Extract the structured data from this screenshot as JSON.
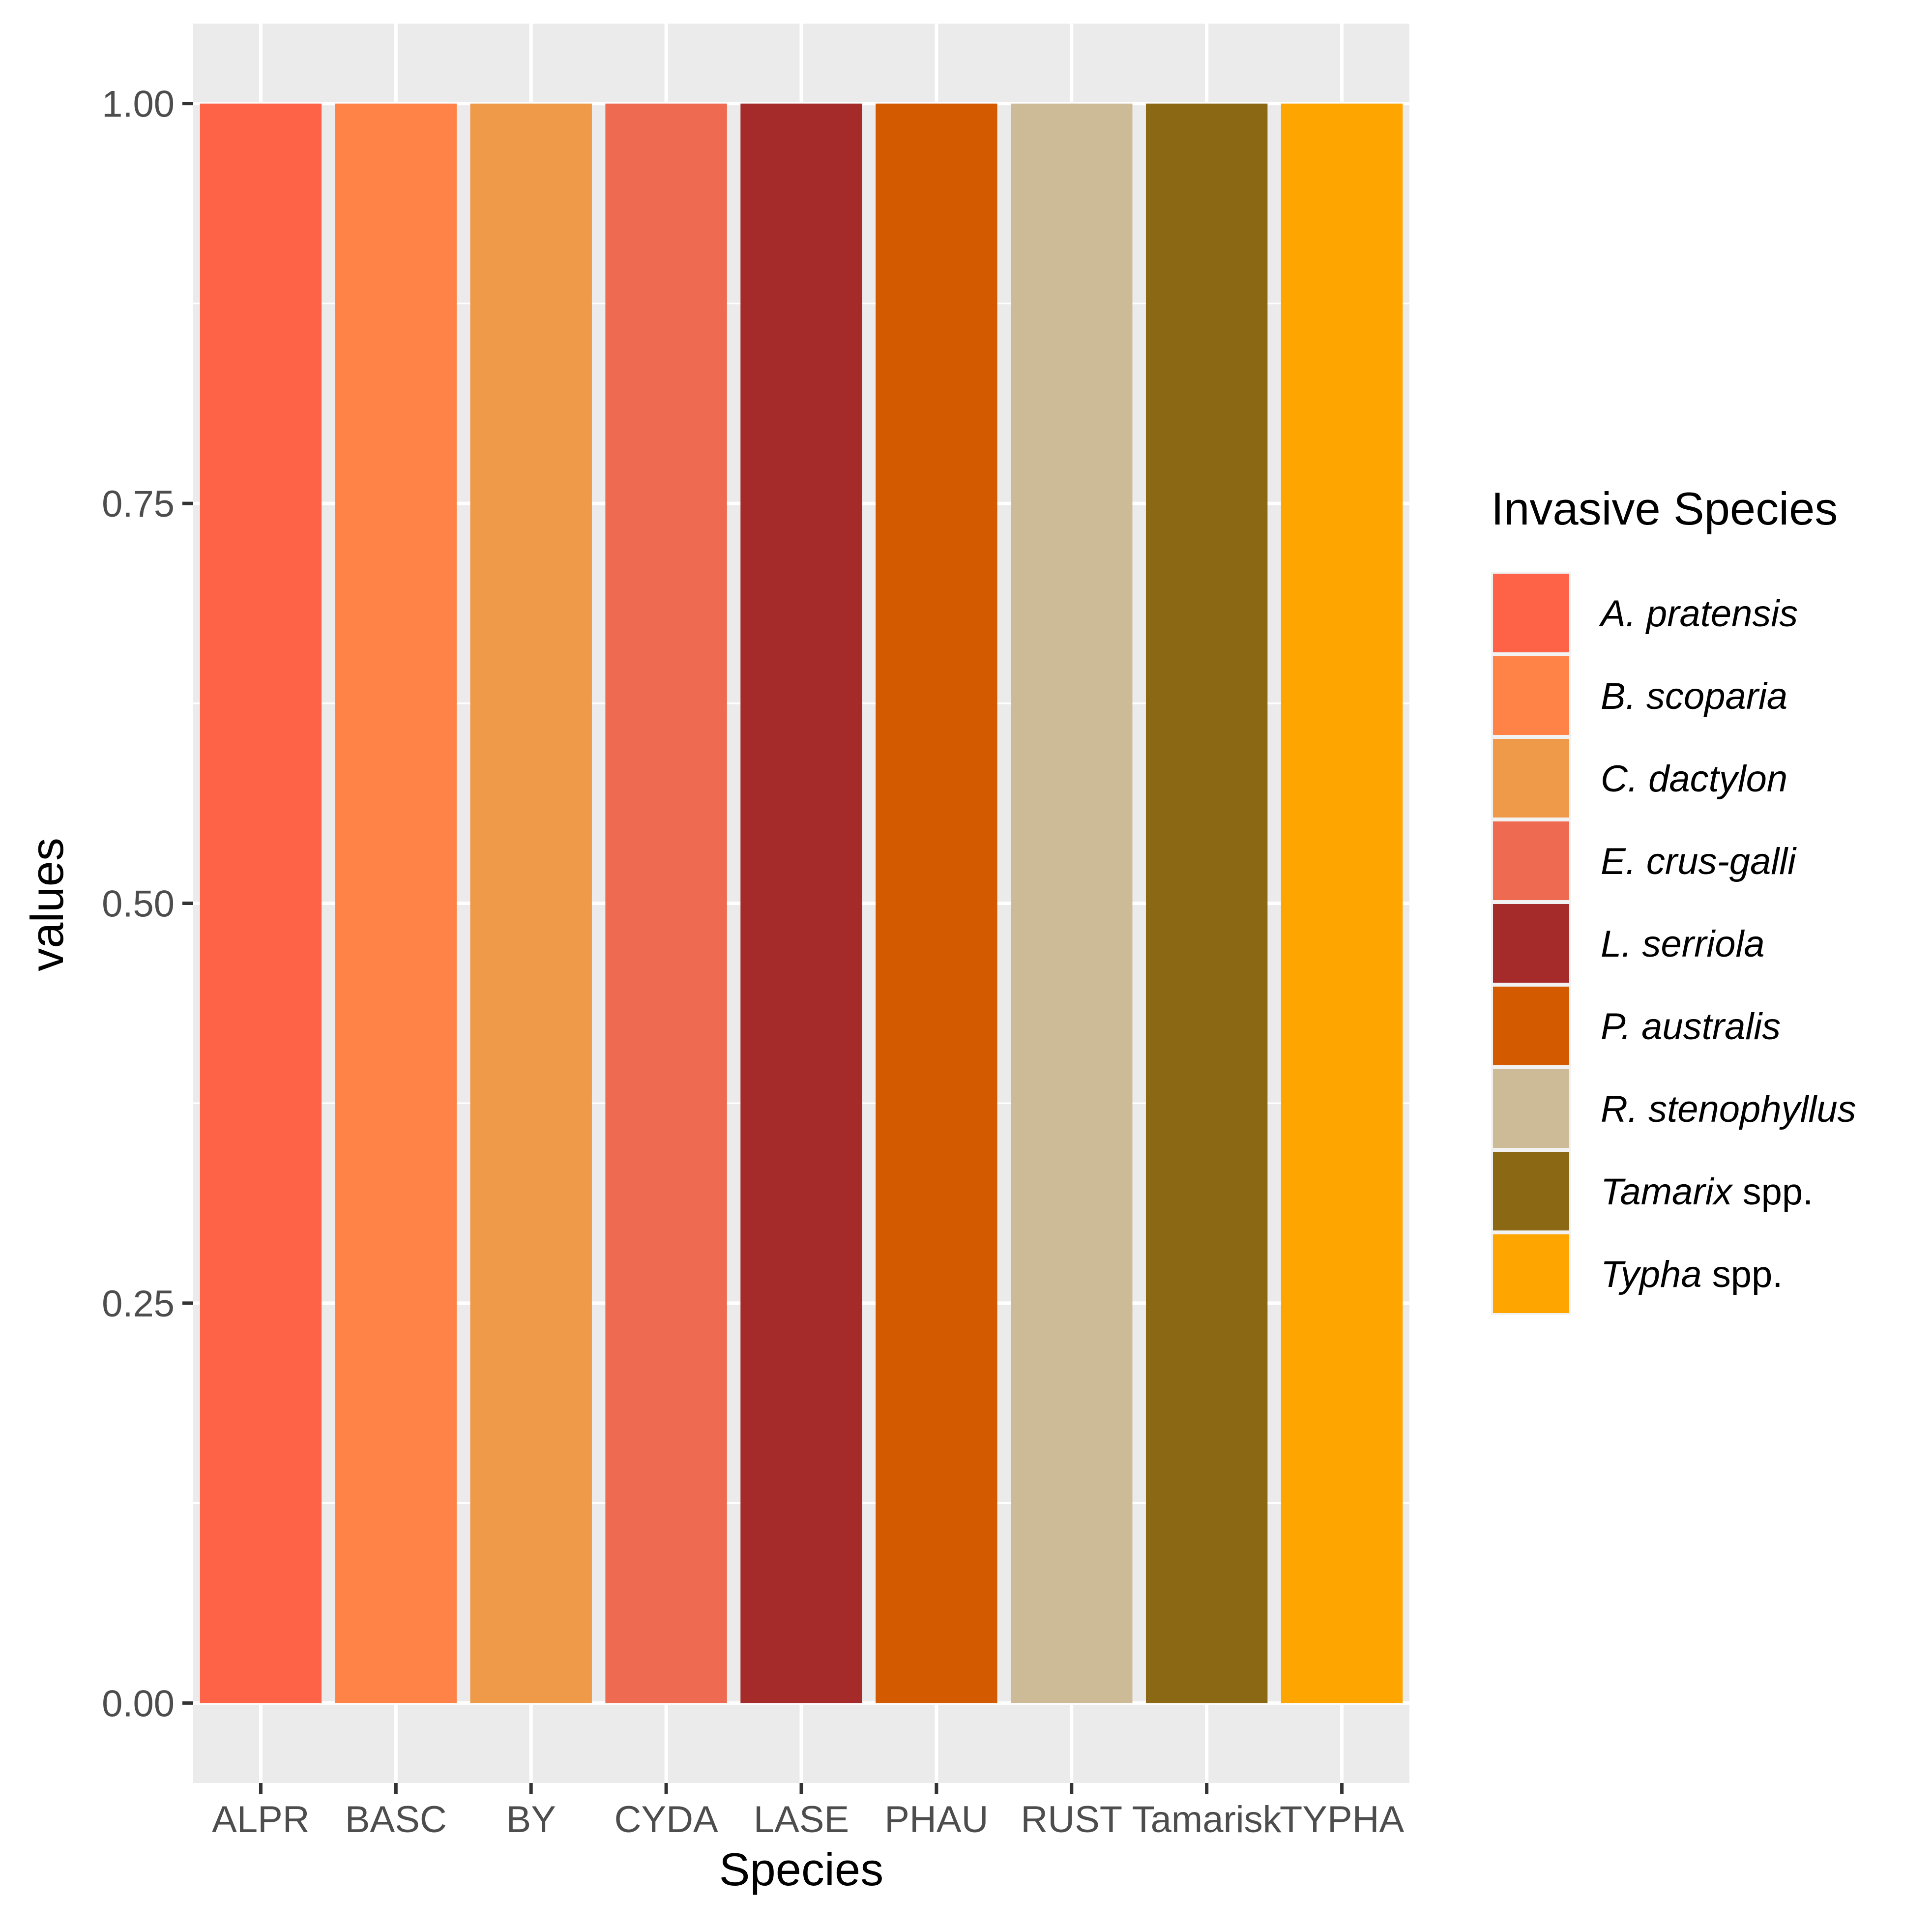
{
  "chart_data": {
    "type": "bar",
    "categories": [
      "ALPR",
      "BASC",
      "BY",
      "CYDA",
      "LASE",
      "PHAU",
      "RUST",
      "Tamarisk",
      "TYPHA"
    ],
    "values": [
      1,
      1,
      1,
      1,
      1,
      1,
      1,
      1,
      1
    ],
    "colors": [
      "#FF6347",
      "#FF8247",
      "#EE9A49",
      "#EE6A50",
      "#A52A2A",
      "#D45A00",
      "#CDBA96",
      "#8B6914",
      "#FFA500"
    ],
    "xlabel": "Species",
    "ylabel": "values",
    "ylim": [
      -0.05,
      1.05
    ],
    "yticks": [
      0.0,
      0.25,
      0.5,
      0.75,
      1.0
    ],
    "ytick_labels": [
      "0.00",
      "0.25",
      "0.50",
      "0.75",
      "1.00"
    ],
    "grid": true,
    "panel_background": "#EBEBEB",
    "legend": {
      "title": "Invasive Species",
      "placement": "right",
      "entries": [
        {
          "italic": "A. pratensis",
          "plain": ""
        },
        {
          "italic": "B. scoparia",
          "plain": ""
        },
        {
          "italic": "C. dactylon",
          "plain": ""
        },
        {
          "italic": "E. crus-galli",
          "plain": ""
        },
        {
          "italic": "L. serriola",
          "plain": ""
        },
        {
          "italic": "P. australis",
          "plain": ""
        },
        {
          "italic": "R. stenophyllus",
          "plain": ""
        },
        {
          "italic": "Tamarix",
          "plain": " spp."
        },
        {
          "italic": "Typha",
          "plain": " spp."
        }
      ]
    }
  }
}
